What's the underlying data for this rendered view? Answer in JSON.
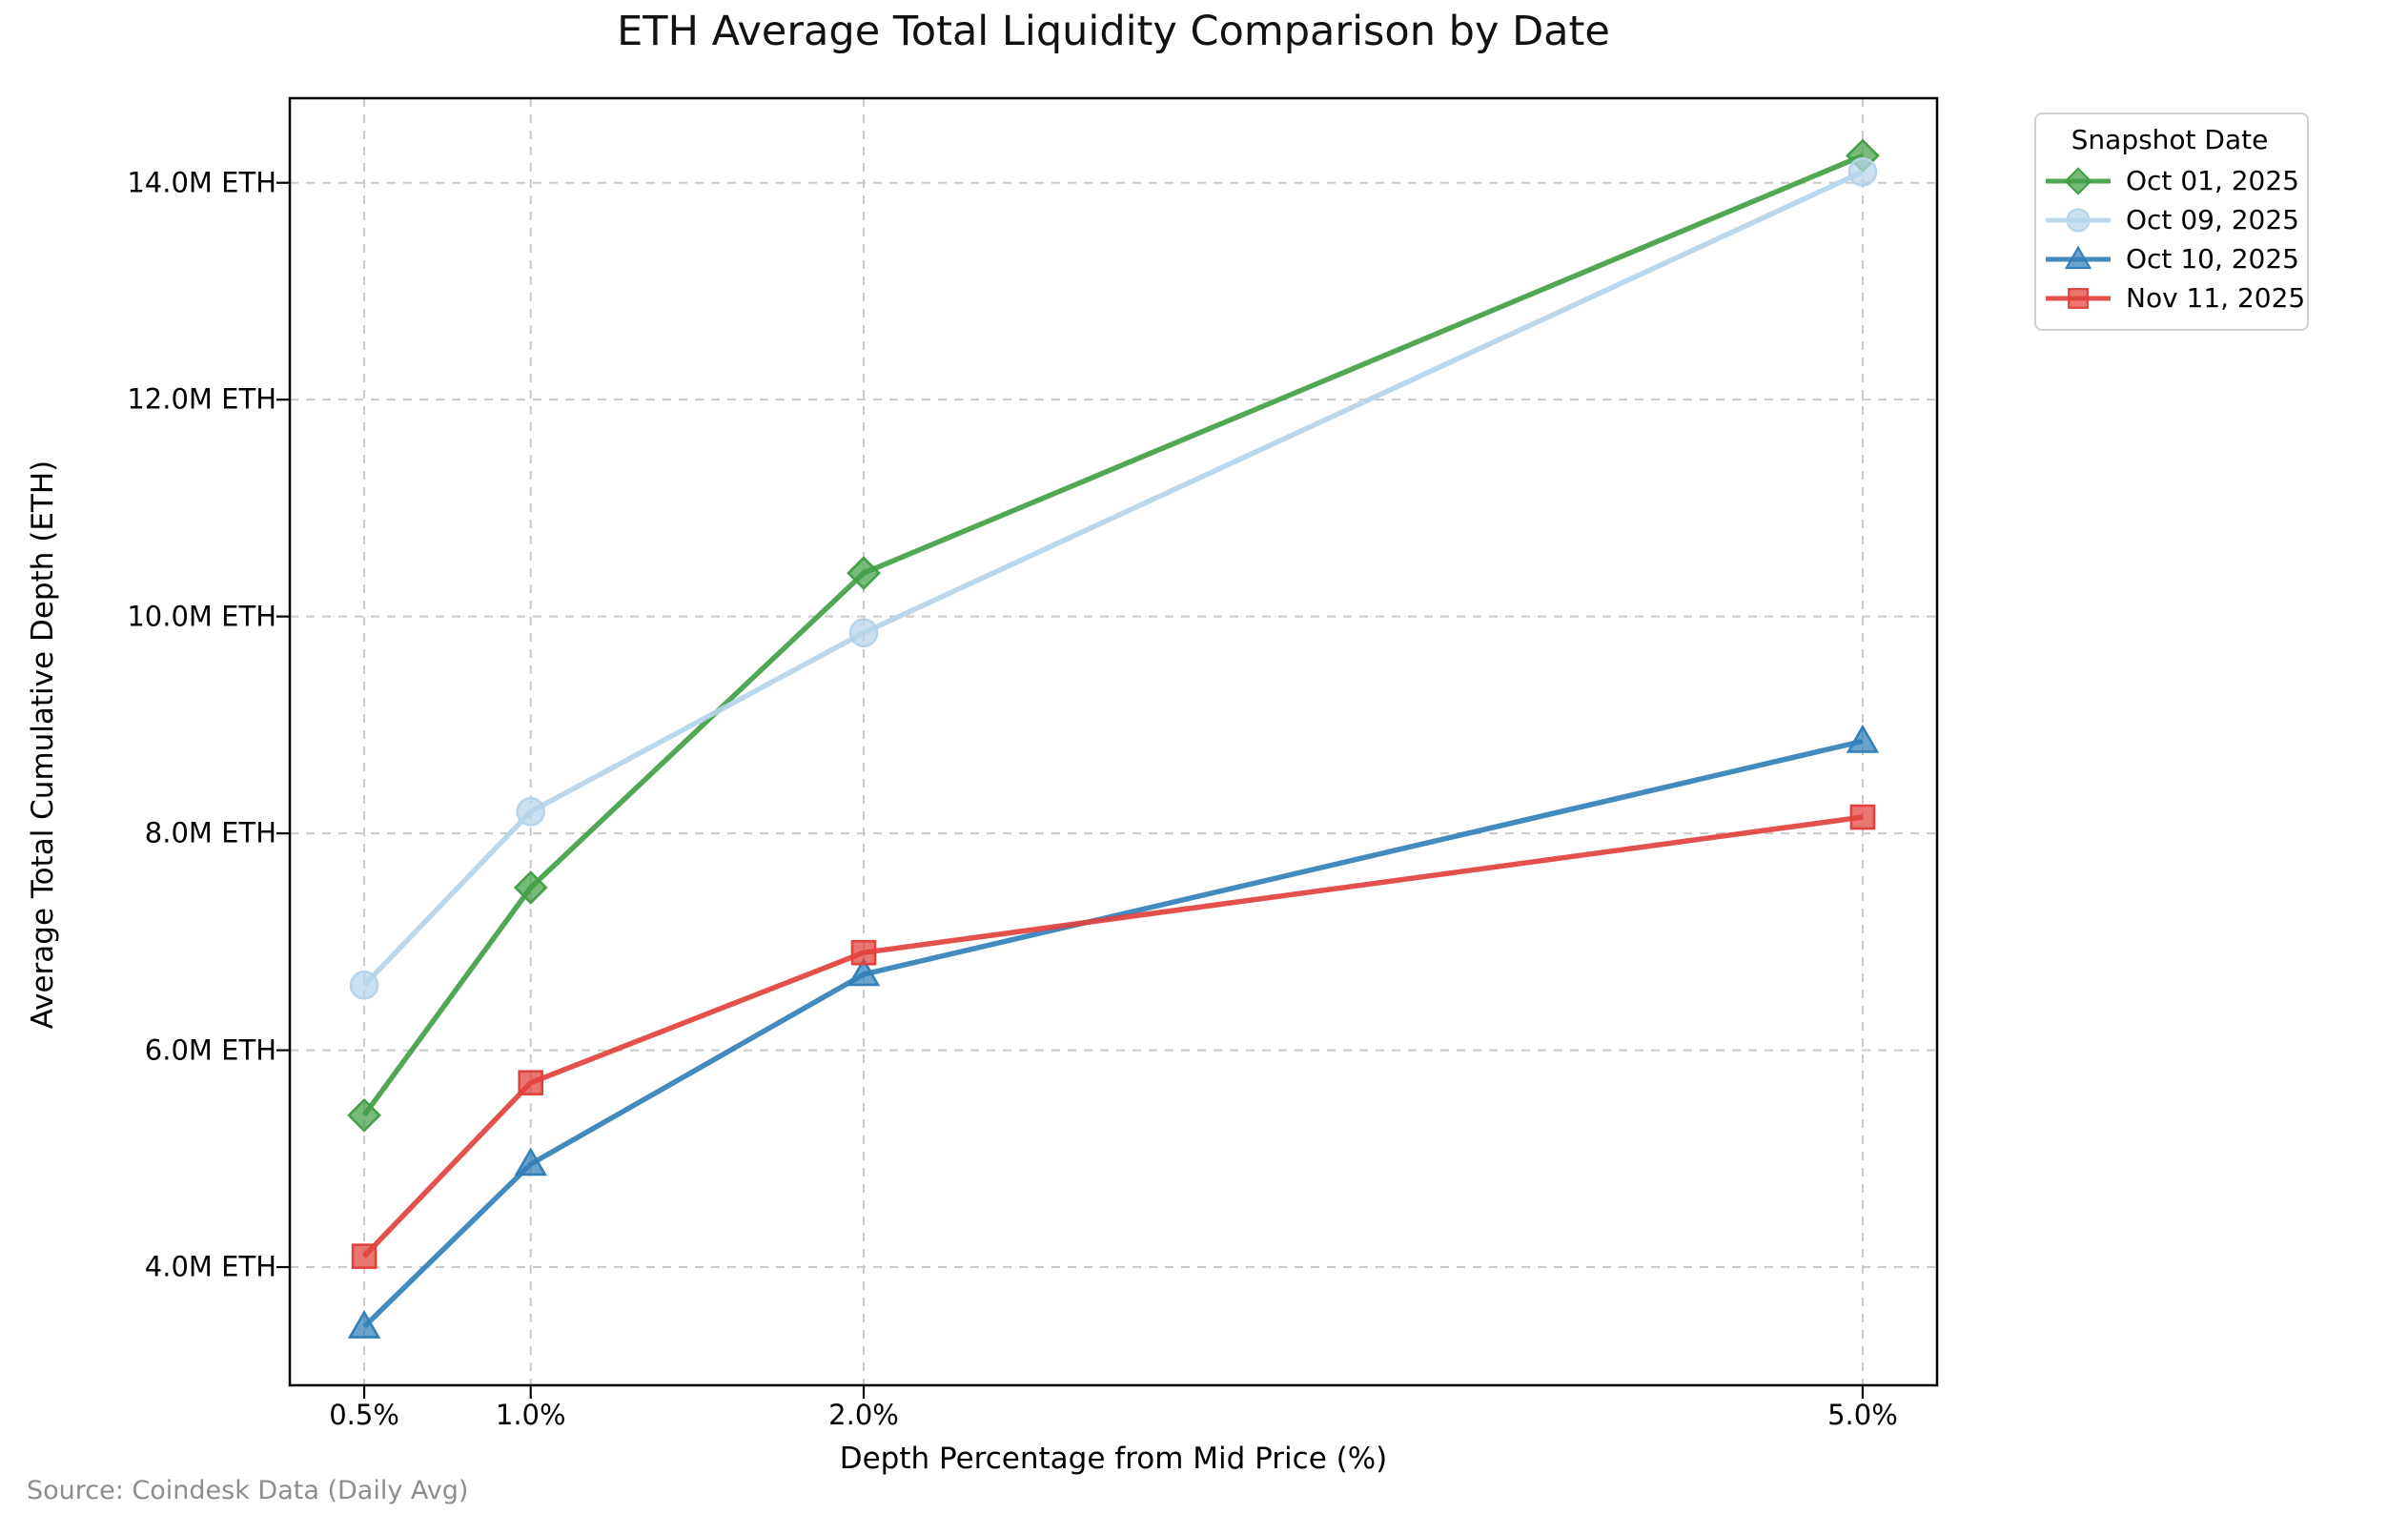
{
  "title": "ETH Average Total Liquidity Comparison by Date",
  "axes": {
    "x_label": "Depth Percentage from Mid Price (%)",
    "y_label": "Average Total Cumulative Depth (ETH)"
  },
  "legend": {
    "title": "Snapshot Date"
  },
  "source_note": "Source: Coindesk Data (Daily Avg)",
  "chart_data": {
    "type": "line",
    "title": "ETH Average Total Liquidity Comparison by Date",
    "xlabel": "Depth Percentage from Mid Price (%)",
    "ylabel": "Average Total Cumulative Depth (ETH)",
    "x": [
      0.5,
      1.0,
      2.0,
      5.0
    ],
    "x_tick_labels": [
      "0.5%",
      "1.0%",
      "2.0%",
      "5.0%"
    ],
    "y_ticks": [
      4,
      6,
      8,
      10,
      12,
      14
    ],
    "y_tick_labels": [
      "4.0M ETH",
      "6.0M ETH",
      "8.0M ETH",
      "10.0M ETH",
      "12.0M ETH",
      "14.0M ETH"
    ],
    "xlim": [
      0.2765,
      5.2235
    ],
    "ylim": [
      2.91,
      14.78
    ],
    "grid": true,
    "grid_style": "dashed",
    "legend_title": "Snapshot Date",
    "legend_position": "upper right, outside plot",
    "unit": "M ETH",
    "series": [
      {
        "name": "Oct 01, 2025",
        "marker": "diamond",
        "color": "#43a047",
        "values": [
          5.4,
          7.5,
          10.4,
          14.25
        ]
      },
      {
        "name": "Oct 09, 2025",
        "marker": "circle",
        "color": "#b5d4ea",
        "values": [
          6.6,
          8.2,
          9.85,
          14.1
        ]
      },
      {
        "name": "Oct 10, 2025",
        "marker": "triangle",
        "color": "#3380b9",
        "values": [
          3.45,
          4.95,
          6.7,
          8.85
        ]
      },
      {
        "name": "Nov 11, 2025",
        "marker": "square",
        "color": "#e2413c",
        "values": [
          4.1,
          5.7,
          6.9,
          8.15
        ]
      }
    ]
  }
}
